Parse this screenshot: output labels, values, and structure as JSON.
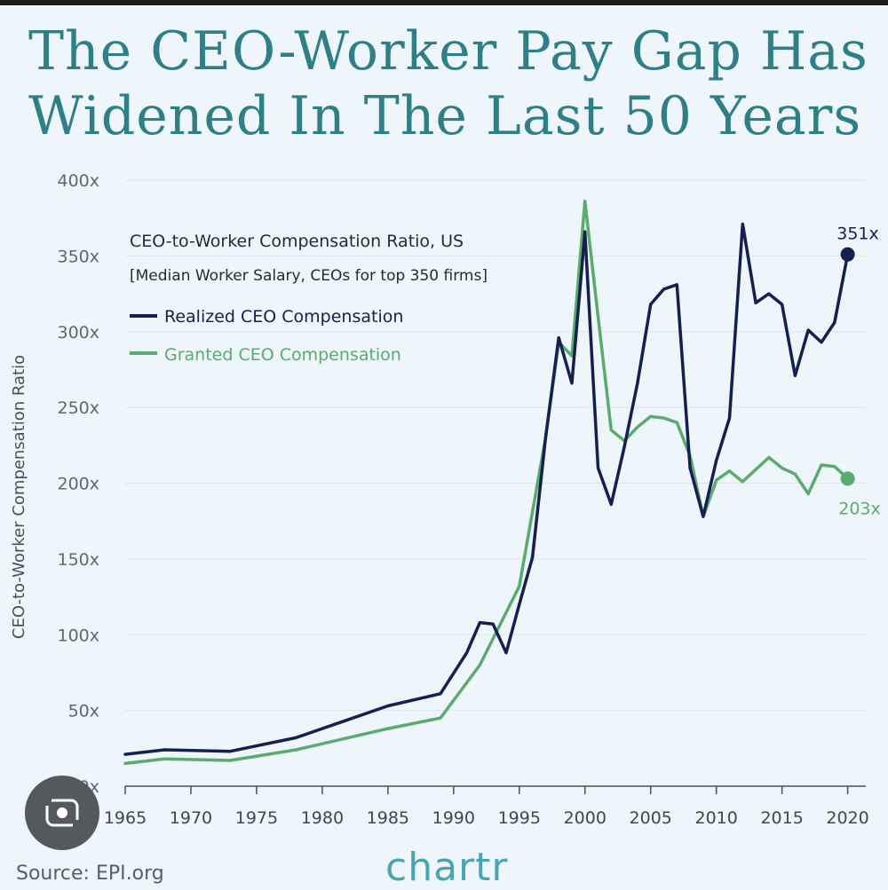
{
  "title_line1": "The CEO-Worker Pay Gap Has",
  "title_line2": "Widened In The Last 50 Years",
  "source": "Source: EPI.org",
  "brand": "chartr",
  "colors": {
    "title": "#2f7f86",
    "realized": "#14204f",
    "granted": "#5aab6e",
    "background": "#eef5fb",
    "brand": "#4aa6ae"
  },
  "icons": {
    "lens_button": "camera-lens-icon"
  },
  "chart_data": {
    "type": "line",
    "title": "CEO-to-Worker Compensation Ratio, US",
    "subtitle": "[Median Worker Salary, CEOs for top 350 firms]",
    "ylabel": "CEO-to-Worker Compensation Ratio",
    "xlabel": "",
    "xlim": [
      1965,
      2020.5
    ],
    "ylim": [
      0,
      400
    ],
    "grid": "horizontal",
    "legend_position": "top-left",
    "xticks": [
      1965,
      1970,
      1975,
      1980,
      1985,
      1990,
      1995,
      2000,
      2005,
      2010,
      2015,
      2020
    ],
    "yticks": [
      0,
      50,
      100,
      150,
      200,
      250,
      300,
      350,
      400
    ],
    "ytick_labels": [
      "0x",
      "50x",
      "100x",
      "150x",
      "200x",
      "250x",
      "300x",
      "350x",
      "400x"
    ],
    "series": [
      {
        "name": "Realized CEO Compensation",
        "color": "#14204f",
        "end_label": "351x",
        "x": [
          1965,
          1968,
          1973,
          1978,
          1985,
          1989,
          1991,
          1992,
          1993,
          1994,
          1995,
          1996,
          1997,
          1998,
          1999,
          2000,
          2001,
          2002,
          2003,
          2004,
          2005,
          2006,
          2007,
          2008,
          2009,
          2010,
          2011,
          2012,
          2013,
          2014,
          2015,
          2016,
          2017,
          2018,
          2019,
          2020
        ],
        "y": [
          21,
          24,
          23,
          32,
          53,
          61,
          88,
          108,
          107,
          88,
          120,
          151,
          230,
          296,
          266,
          366,
          210,
          186,
          224,
          266,
          318,
          328,
          331,
          210,
          178,
          215,
          243,
          371,
          319,
          325,
          318,
          271,
          301,
          293,
          306,
          351
        ]
      },
      {
        "name": "Granted CEO Compensation",
        "color": "#5aab6e",
        "end_label": "203x",
        "x": [
          1965,
          1968,
          1973,
          1978,
          1985,
          1989,
          1992,
          1995,
          1997,
          1998,
          1999,
          2000,
          2001,
          2002,
          2003,
          2004,
          2005,
          2006,
          2007,
          2008,
          2009,
          2010,
          2011,
          2012,
          2013,
          2014,
          2015,
          2016,
          2017,
          2018,
          2019,
          2020
        ],
        "y": [
          15,
          18,
          17,
          24,
          38,
          45,
          80,
          132,
          230,
          293,
          284,
          386,
          310,
          235,
          228,
          237,
          244,
          243,
          240,
          218,
          178,
          202,
          208,
          201,
          209,
          217,
          210,
          206,
          193,
          212,
          211,
          203
        ]
      }
    ]
  }
}
